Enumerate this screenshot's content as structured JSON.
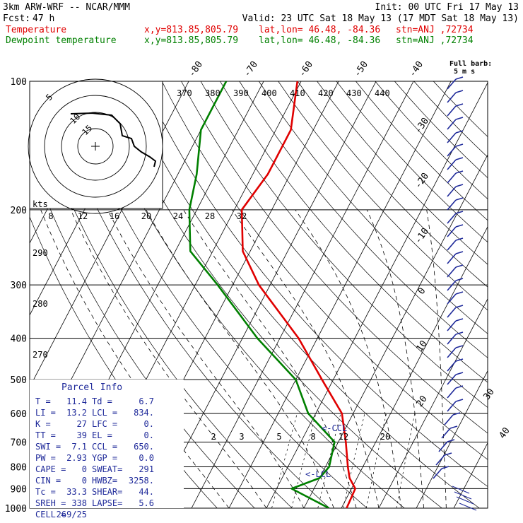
{
  "header": {
    "model": "3km ARW-WRF -- NCAR/MMM",
    "init": "Init: 00 UTC Fri 17 May 13",
    "fcst_label": "Fcst:",
    "fcst_value": "47 h",
    "valid": "Valid: 23 UTC Sat 18 May 13 (17 MDT Sat 18 May 13)",
    "temp_label": "Temperature",
    "dew_label": "Dewpoint temperature",
    "xy": "x,y=813.85,805.79",
    "latlon": "lat,lon= 46.48, -84.36",
    "stn": "stn=ANJ ,72734"
  },
  "colors": {
    "temperature": "#e00000",
    "dewpoint": "#008000",
    "wind_barbs": "#1f2a9a",
    "parcel_text": "#1f2a9a",
    "grid": "#000000"
  },
  "barb_legend": {
    "line1": "Full barb:",
    "line2": "5 m s"
  },
  "chart_data": {
    "type": "line",
    "plot": "skew-T log-P",
    "pressure_levels_hPa": [
      100,
      200,
      300,
      400,
      500,
      600,
      700,
      800,
      900,
      1000
    ],
    "pressure_labels": [
      "100",
      "200",
      "300",
      "400",
      "500",
      "600",
      "700",
      "800",
      "900",
      "1000"
    ],
    "isotherm_labels": [
      "-80",
      "-70",
      "-60",
      "-50",
      "-40",
      "-30",
      "-20",
      "-10",
      "0",
      "10",
      "20",
      "30",
      "40"
    ],
    "isotherm_values": [
      -80,
      -70,
      -60,
      -50,
      -40,
      -30,
      -20,
      -10,
      0,
      10,
      20,
      30,
      40
    ],
    "theta_labels": [
      "290",
      "280",
      "270"
    ],
    "theta_e_labels": [
      "370",
      "380",
      "390",
      "400",
      "410",
      "420",
      "430",
      "440"
    ],
    "mixing_ratio_labels": [
      "2",
      "3",
      "5",
      "8",
      "12",
      "20"
    ],
    "hodograph_speed_labels": [
      "8",
      "12",
      "16",
      "20",
      "24",
      "28",
      "32"
    ],
    "hodograph_unit": "kts",
    "hodograph_ring_labels": [
      "5",
      "10",
      "15"
    ],
    "series": [
      {
        "name": "Temperature",
        "points": [
          [
            100,
            -61
          ],
          [
            130,
            -56
          ],
          [
            165,
            -56
          ],
          [
            200,
            -58
          ],
          [
            250,
            -52
          ],
          [
            300,
            -43
          ],
          [
            400,
            -25
          ],
          [
            500,
            -13
          ],
          [
            600,
            -3
          ],
          [
            700,
            2
          ],
          [
            800,
            6
          ],
          [
            850,
            8
          ],
          [
            900,
            11
          ],
          [
            1000,
            11.4
          ]
        ]
      },
      {
        "name": "Dewpoint temperature",
        "points": [
          [
            100,
            -80
          ],
          [
            130,
            -80
          ],
          [
            165,
            -75
          ],
          [
            200,
            -72
          ],
          [
            250,
            -66
          ],
          [
            300,
            -54
          ],
          [
            400,
            -36
          ],
          [
            500,
            -20
          ],
          [
            600,
            -12
          ],
          [
            700,
            -1
          ],
          [
            800,
            1
          ],
          [
            850,
            0
          ],
          [
            900,
            -6
          ],
          [
            1000,
            6.7
          ]
        ]
      }
    ],
    "annotations": [
      "<-CCL",
      "<-LCL"
    ],
    "parcel_info": {
      "title": "Parcel Info",
      "rows": [
        [
          "T  =",
          "11.4",
          "Td =",
          "6.7"
        ],
        [
          "LI =",
          "13.2",
          "LCL =",
          "834."
        ],
        [
          "K  =",
          "27",
          "LFC =",
          "0."
        ],
        [
          "TT =",
          "39",
          "EL  =",
          "0."
        ],
        [
          "SWI =",
          "7.1",
          "CCL =",
          "650."
        ],
        [
          "PW =",
          "2.93",
          "YGP =",
          "0.0"
        ],
        [
          "CAPE =",
          "0",
          "SWEAT=",
          "291"
        ],
        [
          "CIN =",
          "0",
          "HWBZ=",
          "3258."
        ],
        [
          "Tc =",
          "33.3",
          "SHEAR=",
          "44."
        ],
        [
          "SREH =",
          "338",
          "LAPSE=",
          "5.6"
        ],
        [
          "CELL =",
          "269/25",
          "",
          ""
        ]
      ]
    }
  }
}
